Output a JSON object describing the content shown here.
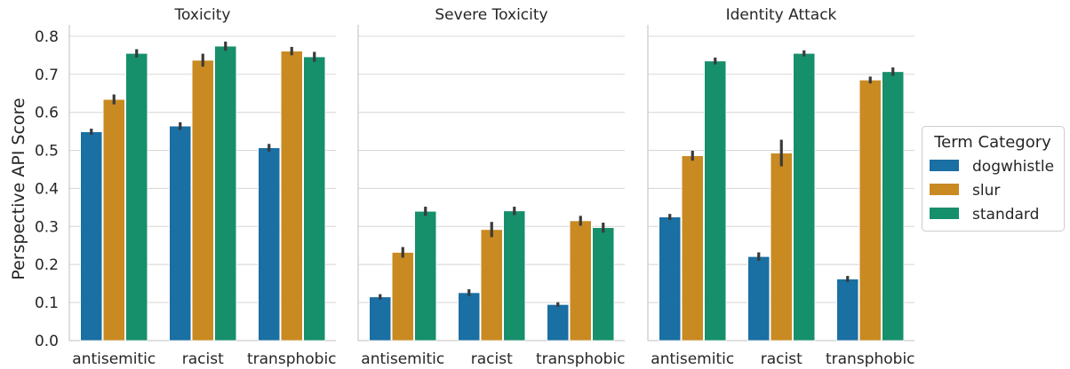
{
  "chart_data": {
    "type": "bar",
    "ylabel": "Perspective API Score",
    "ylim": [
      0,
      0.83
    ],
    "yticks": [
      "0.0",
      "0.1",
      "0.2",
      "0.3",
      "0.4",
      "0.5",
      "0.6",
      "0.7",
      "0.8"
    ],
    "grid": true,
    "categories": [
      "antisemitic",
      "racist",
      "transphobic"
    ],
    "legend": {
      "title": "Term Category",
      "placement": "right",
      "entries": [
        "dogwhistle",
        "slur",
        "standard"
      ]
    },
    "colors": {
      "dogwhistle": "#1a6fa3",
      "slur": "#c98a22",
      "standard": "#168f6b"
    },
    "panels": [
      {
        "title": "Toxicity",
        "series": [
          {
            "name": "dogwhistle",
            "values": [
              0.549,
              0.564,
              0.507
            ],
            "err": [
              0.008,
              0.01,
              0.01
            ]
          },
          {
            "name": "slur",
            "values": [
              0.634,
              0.737,
              0.761
            ],
            "err": [
              0.013,
              0.017,
              0.011
            ]
          },
          {
            "name": "standard",
            "values": [
              0.755,
              0.774,
              0.746
            ],
            "err": [
              0.011,
              0.012,
              0.013
            ]
          }
        ]
      },
      {
        "title": "Severe Toxicity",
        "series": [
          {
            "name": "dogwhistle",
            "values": [
              0.115,
              0.126,
              0.095
            ],
            "err": [
              0.007,
              0.009,
              0.006
            ]
          },
          {
            "name": "slur",
            "values": [
              0.232,
              0.292,
              0.315
            ],
            "err": [
              0.014,
              0.02,
              0.013
            ]
          },
          {
            "name": "standard",
            "values": [
              0.34,
              0.341,
              0.297
            ],
            "err": [
              0.012,
              0.011,
              0.013
            ]
          }
        ]
      },
      {
        "title": "Identity Attack",
        "series": [
          {
            "name": "dogwhistle",
            "values": [
              0.325,
              0.221,
              0.162
            ],
            "err": [
              0.008,
              0.011,
              0.008
            ]
          },
          {
            "name": "slur",
            "values": [
              0.486,
              0.493,
              0.685
            ],
            "err": [
              0.013,
              0.035,
              0.009
            ]
          },
          {
            "name": "standard",
            "values": [
              0.735,
              0.755,
              0.707
            ],
            "err": [
              0.009,
              0.008,
              0.011
            ]
          }
        ]
      }
    ]
  }
}
